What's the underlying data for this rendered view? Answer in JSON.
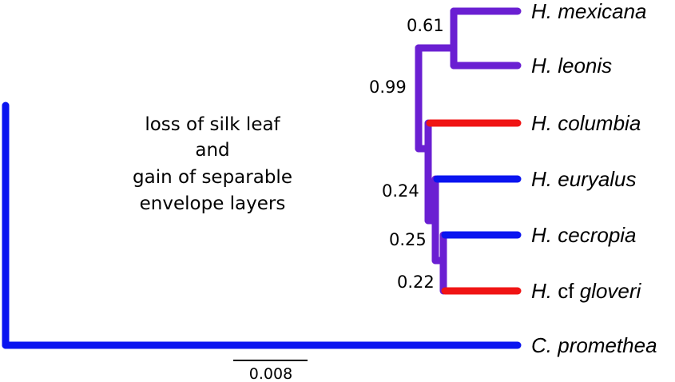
{
  "tree": {
    "colors": {
      "blue": "#0a14f0",
      "purple": "#6a1fd2",
      "red": "#f01414",
      "gradient_start": "#0a14f0",
      "gradient_end": "#7a1fd0"
    },
    "taxa": [
      {
        "id": "mexicana",
        "genus": "H.",
        "qualifier": "",
        "species": "mexicana",
        "color": "purple"
      },
      {
        "id": "leonis",
        "genus": "H.",
        "qualifier": "",
        "species": "leonis",
        "color": "purple"
      },
      {
        "id": "columbia",
        "genus": "H.",
        "qualifier": "",
        "species": "columbia",
        "color": "red"
      },
      {
        "id": "euryalus",
        "genus": "H.",
        "qualifier": "",
        "species": "euryalus",
        "color": "blue"
      },
      {
        "id": "cecropia",
        "genus": "H.",
        "qualifier": "",
        "species": "cecropia",
        "color": "blue"
      },
      {
        "id": "gloveri",
        "genus": "H.",
        "qualifier": "cf",
        "species": "gloveri",
        "color": "red"
      },
      {
        "id": "promethea",
        "genus": "C.",
        "qualifier": "",
        "species": "promethea",
        "color": "blue"
      }
    ],
    "support_values": {
      "mexicana_leonis": "0.61",
      "hyalophora": "0.99",
      "columbia_rest": "0.24",
      "euryalus_rest": "0.25",
      "cecropia_gloveri": "0.22"
    },
    "annotation": [
      "loss of silk leaf",
      "and",
      "gain of separable",
      "envelope layers"
    ],
    "scale_bar": {
      "value": 0.008,
      "label": "0.008"
    }
  }
}
